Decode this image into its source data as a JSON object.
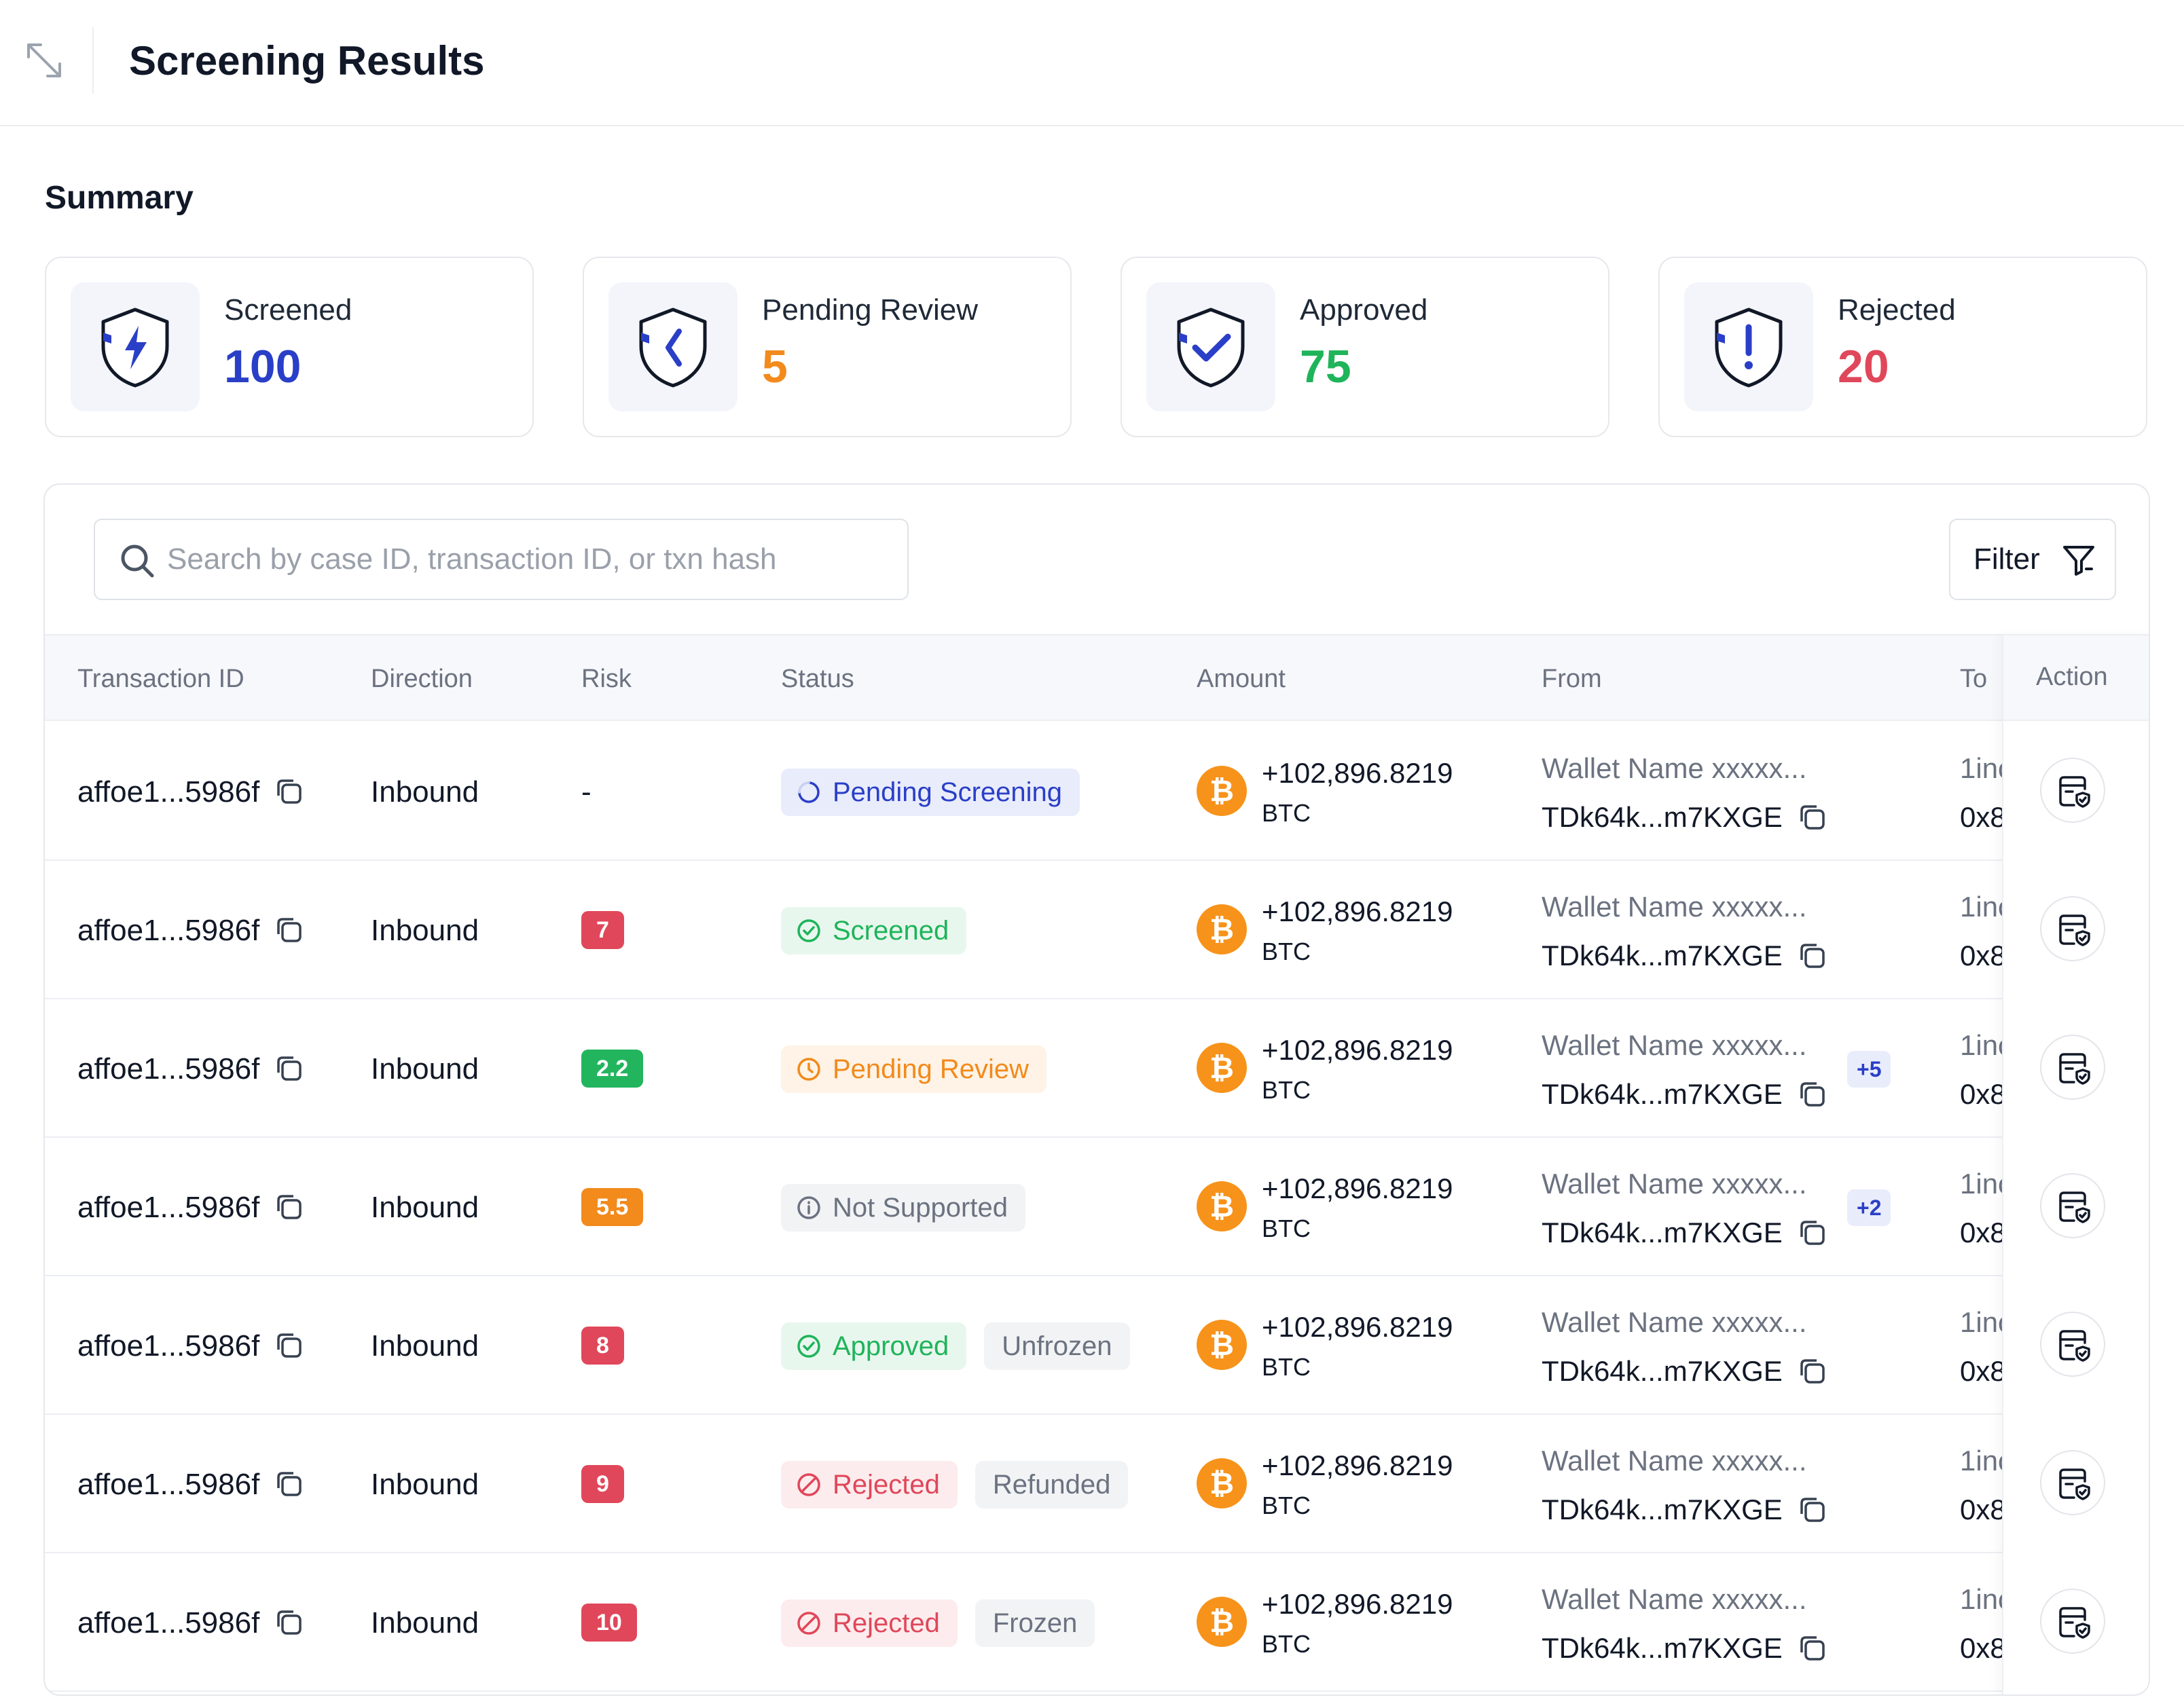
{
  "header": {
    "title": "Screening Results"
  },
  "summary": {
    "title": "Summary",
    "cards": [
      {
        "label": "Screened",
        "value": "100",
        "color": "#2a3fc7",
        "icon": "shield-bolt-icon"
      },
      {
        "label": "Pending Review",
        "value": "5",
        "color": "#f28a1c",
        "icon": "shield-chevron-icon"
      },
      {
        "label": "Approved",
        "value": "75",
        "color": "#1fb45a",
        "icon": "shield-check-icon"
      },
      {
        "label": "Rejected",
        "value": "20",
        "color": "#e0475a",
        "icon": "shield-exclamation-icon"
      }
    ]
  },
  "toolbar": {
    "search_placeholder": "Search by case ID, transaction ID, or txn hash",
    "filter_label": "Filter"
  },
  "table": {
    "columns": [
      "Transaction ID",
      "Direction",
      "Risk",
      "Status",
      "Amount",
      "From",
      "To",
      "Action"
    ],
    "rows": [
      {
        "txid": "affoe1...5986f",
        "direction": "Inbound",
        "risk": "-",
        "status": "Pending Screening",
        "status_type": "pending-screening",
        "sub": "",
        "amount": "+102,896.8219",
        "currency": "BTC",
        "from_name": "Wallet Name xxxxx...",
        "from_addr": "TDk64k...m7KXGE",
        "extra": "",
        "to_name": "1inc",
        "to_addr": "0x8"
      },
      {
        "txid": "affoe1...5986f",
        "direction": "Inbound",
        "risk": "7",
        "status": "Screened",
        "status_type": "screened",
        "sub": "",
        "amount": "+102,896.8219",
        "currency": "BTC",
        "from_name": "Wallet Name xxxxx...",
        "from_addr": "TDk64k...m7KXGE",
        "extra": "",
        "to_name": "1inc",
        "to_addr": "0x8"
      },
      {
        "txid": "affoe1...5986f",
        "direction": "Inbound",
        "risk": "2.2",
        "status": "Pending Review",
        "status_type": "pending-review",
        "sub": "",
        "amount": "+102,896.8219",
        "currency": "BTC",
        "from_name": "Wallet Name xxxxx...",
        "from_addr": "TDk64k...m7KXGE",
        "extra": "+5",
        "to_name": "1inc",
        "to_addr": "0x8"
      },
      {
        "txid": "affoe1...5986f",
        "direction": "Inbound",
        "risk": "5.5",
        "status": "Not Supported",
        "status_type": "not-supported",
        "sub": "",
        "amount": "+102,896.8219",
        "currency": "BTC",
        "from_name": "Wallet Name xxxxx...",
        "from_addr": "TDk64k...m7KXGE",
        "extra": "+2",
        "to_name": "1inc",
        "to_addr": "0x8"
      },
      {
        "txid": "affoe1...5986f",
        "direction": "Inbound",
        "risk": "8",
        "status": "Approved",
        "status_type": "approved",
        "sub": "Unfrozen",
        "amount": "+102,896.8219",
        "currency": "BTC",
        "from_name": "Wallet Name xxxxx...",
        "from_addr": "TDk64k...m7KXGE",
        "extra": "",
        "to_name": "1inc",
        "to_addr": "0x8"
      },
      {
        "txid": "affoe1...5986f",
        "direction": "Inbound",
        "risk": "9",
        "status": "Rejected",
        "status_type": "rejected",
        "sub": "Refunded",
        "amount": "+102,896.8219",
        "currency": "BTC",
        "from_name": "Wallet Name xxxxx...",
        "from_addr": "TDk64k...m7KXGE",
        "extra": "",
        "to_name": "1inc",
        "to_addr": "0x8"
      },
      {
        "txid": "affoe1...5986f",
        "direction": "Inbound",
        "risk": "10",
        "status": "Rejected",
        "status_type": "rejected",
        "sub": "Frozen",
        "amount": "+102,896.8219",
        "currency": "BTC",
        "from_name": "Wallet Name xxxxx...",
        "from_addr": "TDk64k...m7KXGE",
        "extra": "",
        "to_name": "1inc",
        "to_addr": "0x8"
      }
    ]
  },
  "colors": {
    "risk_high": "#e0475a",
    "risk_low": "#22b55e",
    "risk_medium": "#f28a1c",
    "btc": "#f7931a",
    "accent_blue": "#2a3fc7"
  }
}
